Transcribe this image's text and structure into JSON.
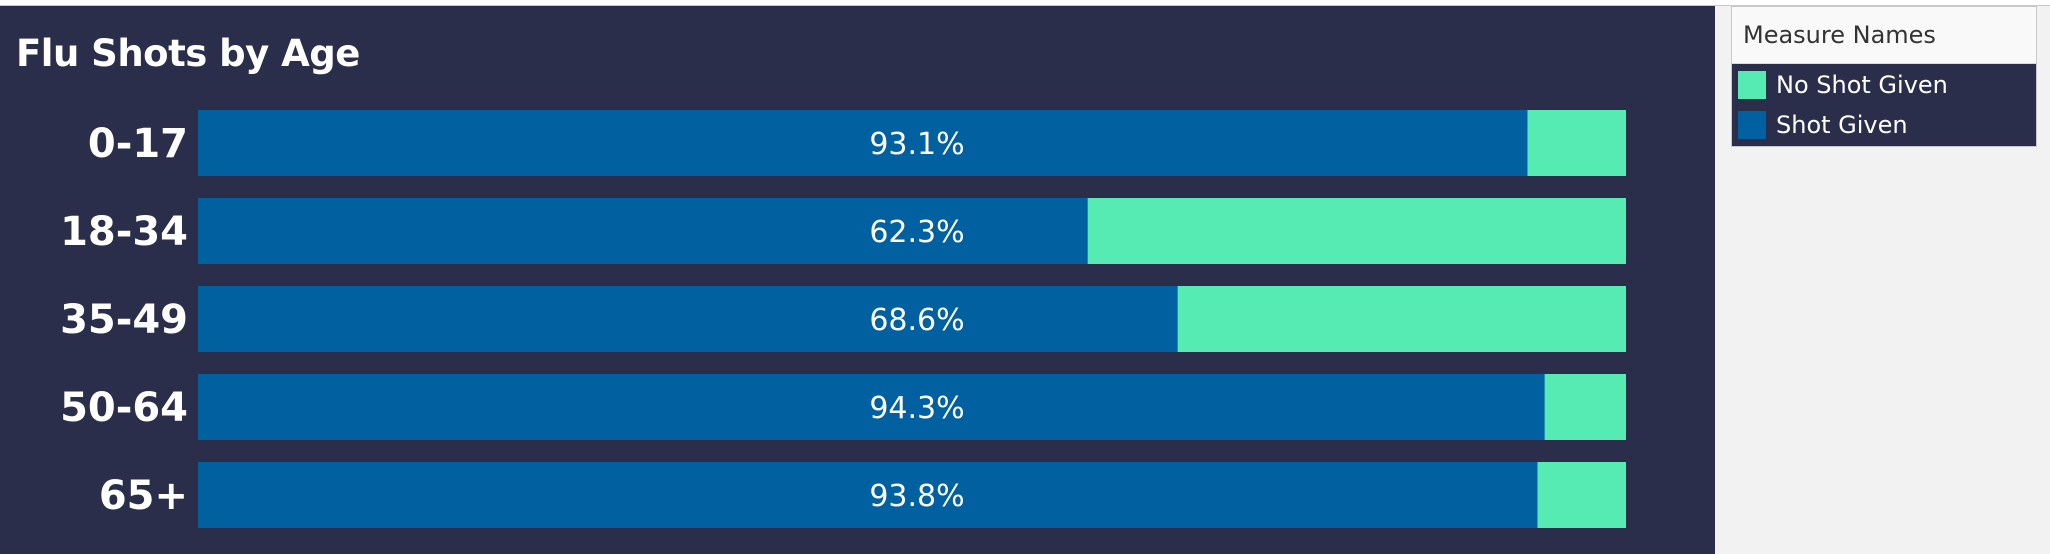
{
  "chart_data": {
    "type": "bar",
    "orientation": "horizontal",
    "stacked": true,
    "normalized": true,
    "title": "Flu Shots by Age",
    "categories": [
      "0-17",
      "18-34",
      "35-49",
      "50-64",
      "65+"
    ],
    "series": [
      {
        "name": "Shot Given",
        "values": [
          93.1,
          62.3,
          68.6,
          94.3,
          93.8
        ],
        "color": "#0160a0"
      },
      {
        "name": "No Shot Given",
        "values": [
          6.9,
          37.7,
          31.4,
          5.7,
          6.2
        ],
        "color": "#55ebb3"
      }
    ],
    "data_labels": [
      "93.1%",
      "62.3%",
      "68.6%",
      "94.3%",
      "93.8%"
    ],
    "xlim": [
      0,
      100
    ],
    "grid": false,
    "legend_position": "right"
  },
  "legend": {
    "title": "Measure Names",
    "items": [
      {
        "label": "No Shot Given",
        "color": "#55ebb3"
      },
      {
        "label": "Shot Given",
        "color": "#0160a0"
      }
    ]
  },
  "colors": {
    "background": "#2a2e4a",
    "text": "#ffffff"
  }
}
